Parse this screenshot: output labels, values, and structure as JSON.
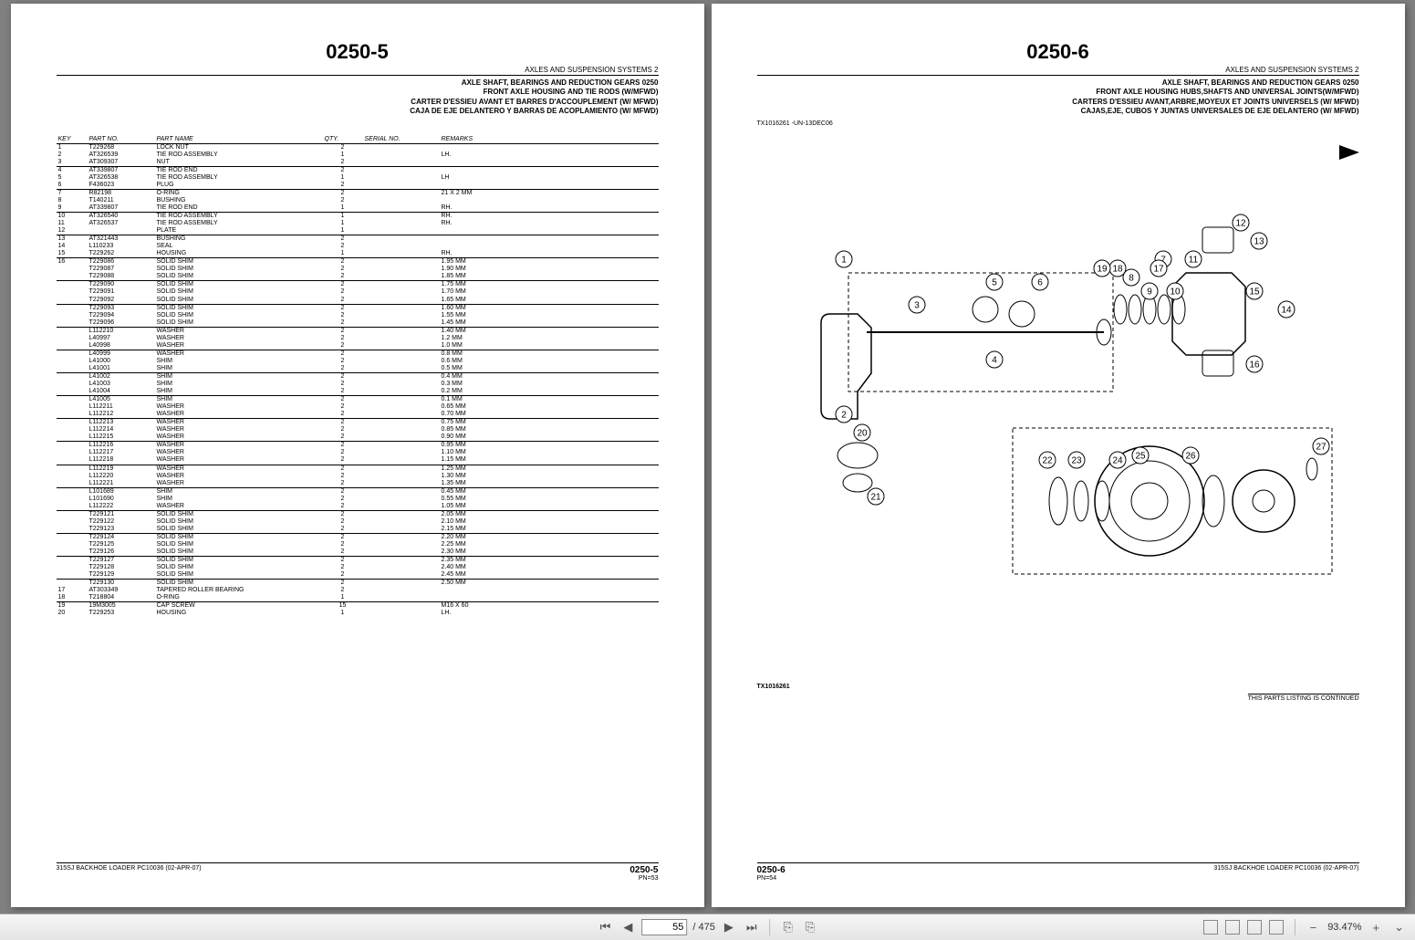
{
  "toolbar": {
    "page_current": "55",
    "page_total": "/ 475",
    "zoom": "93.47%"
  },
  "left_page": {
    "page_num": "0250-5",
    "section": "AXLES AND SUSPENSION SYSTEMS   2",
    "titles": [
      "AXLE SHAFT, BEARINGS AND REDUCTION GEARS 0250",
      "FRONT AXLE HOUSING AND TIE RODS (W/MFWD)",
      "CARTER D'ESSIEU AVANT ET BARRES D'ACCOUPLEMENT (W/ MFWD)",
      "CAJA DE EJE DELANTERO Y BARRAS DE ACOPLAMIENTO (W/ MFWD)"
    ],
    "columns": [
      "KEY",
      "PART NO.",
      "PART NAME",
      "QTY.",
      "SERIAL NO.",
      "REMARKS"
    ],
    "rows": [
      {
        "k": "1",
        "pn": "T229268",
        "nm": "LOCK NUT",
        "q": "2",
        "sn": "",
        "rm": ""
      },
      {
        "k": "2",
        "pn": "AT326539",
        "nm": "TIE ROD ASSEMBLY",
        "q": "1",
        "sn": "",
        "rm": "LH."
      },
      {
        "k": "3",
        "pn": "AT309307",
        "nm": "NUT",
        "q": "2",
        "sn": "",
        "rm": "",
        "ul": true
      },
      {
        "k": "4",
        "pn": "AT339807",
        "nm": "TIE ROD END",
        "q": "2",
        "sn": "",
        "rm": ""
      },
      {
        "k": "5",
        "pn": "AT326538",
        "nm": "TIE ROD ASSEMBLY",
        "q": "1",
        "sn": "",
        "rm": "LH"
      },
      {
        "k": "6",
        "pn": "F436023",
        "nm": "PLUG",
        "q": "2",
        "sn": "",
        "rm": "",
        "ul": true
      },
      {
        "k": "7",
        "pn": "R82198",
        "nm": "O-RING",
        "q": "2",
        "sn": "",
        "rm": "21 X 2 MM"
      },
      {
        "k": "8",
        "pn": "T140211",
        "nm": "BUSHING",
        "q": "2",
        "sn": "",
        "rm": ""
      },
      {
        "k": "9",
        "pn": "AT339807",
        "nm": "TIE ROD END",
        "q": "1",
        "sn": "",
        "rm": "RH.",
        "ul": true
      },
      {
        "k": "10",
        "pn": "AT326540",
        "nm": "TIE ROD ASSEMBLY",
        "q": "1",
        "sn": "",
        "rm": "RH."
      },
      {
        "k": "11",
        "pn": "AT326537",
        "nm": "TIE ROD ASSEMBLY",
        "q": "1",
        "sn": "",
        "rm": "RH."
      },
      {
        "k": "12",
        "pn": "",
        "nm": "PLATE",
        "q": "1",
        "sn": "",
        "rm": "",
        "ul": true
      },
      {
        "k": "13",
        "pn": "AT321443",
        "nm": "BUSHING",
        "q": "2",
        "sn": "",
        "rm": ""
      },
      {
        "k": "14",
        "pn": "L110233",
        "nm": "SEAL",
        "q": "2",
        "sn": "",
        "rm": ""
      },
      {
        "k": "15",
        "pn": "T229262",
        "nm": "HOUSING",
        "q": "1",
        "sn": "",
        "rm": "RH.",
        "ul": true
      },
      {
        "k": "16",
        "pn": "T229086",
        "nm": "SOLID SHIM",
        "q": "2",
        "sn": "",
        "rm": "1.95 MM"
      },
      {
        "k": "",
        "pn": "T229087",
        "nm": "SOLID SHIM",
        "q": "2",
        "sn": "",
        "rm": "1.90 MM"
      },
      {
        "k": "",
        "pn": "T229088",
        "nm": "SOLID SHIM",
        "q": "2",
        "sn": "",
        "rm": "1.85 MM",
        "ul": true
      },
      {
        "k": "",
        "pn": "T229090",
        "nm": "SOLID SHIM",
        "q": "2",
        "sn": "",
        "rm": "1.75 MM"
      },
      {
        "k": "",
        "pn": "T229091",
        "nm": "SOLID SHIM",
        "q": "2",
        "sn": "",
        "rm": "1.70 MM"
      },
      {
        "k": "",
        "pn": "T229092",
        "nm": "SOLID SHIM",
        "q": "2",
        "sn": "",
        "rm": "1.65 MM",
        "ul": true
      },
      {
        "k": "",
        "pn": "T229093",
        "nm": "SOLID SHIM",
        "q": "2",
        "sn": "",
        "rm": "1.60 MM"
      },
      {
        "k": "",
        "pn": "T229094",
        "nm": "SOLID SHIM",
        "q": "2",
        "sn": "",
        "rm": "1.55 MM"
      },
      {
        "k": "",
        "pn": "T229096",
        "nm": "SOLID SHIM",
        "q": "2",
        "sn": "",
        "rm": "1.45 MM",
        "ul": true
      },
      {
        "k": "",
        "pn": "L112210",
        "nm": "WASHER",
        "q": "2",
        "sn": "",
        "rm": "1.40 MM"
      },
      {
        "k": "",
        "pn": "L40997",
        "nm": "WASHER",
        "q": "2",
        "sn": "",
        "rm": "1.2 MM"
      },
      {
        "k": "",
        "pn": "L40998",
        "nm": "WASHER",
        "q": "2",
        "sn": "",
        "rm": "1.0 MM",
        "ul": true
      },
      {
        "k": "",
        "pn": "L40999",
        "nm": "WASHER",
        "q": "2",
        "sn": "",
        "rm": "0.8 MM"
      },
      {
        "k": "",
        "pn": "L41000",
        "nm": "SHIM",
        "q": "2",
        "sn": "",
        "rm": "0.6 MM"
      },
      {
        "k": "",
        "pn": "L41001",
        "nm": "SHIM",
        "q": "2",
        "sn": "",
        "rm": "0.5 MM",
        "ul": true
      },
      {
        "k": "",
        "pn": "L41002",
        "nm": "SHIM",
        "q": "2",
        "sn": "",
        "rm": "0.4 MM"
      },
      {
        "k": "",
        "pn": "L41003",
        "nm": "SHIM",
        "q": "2",
        "sn": "",
        "rm": "0.3 MM"
      },
      {
        "k": "",
        "pn": "L41004",
        "nm": "SHIM",
        "q": "2",
        "sn": "",
        "rm": "0.2 MM",
        "ul": true
      },
      {
        "k": "",
        "pn": "L41005",
        "nm": "SHIM",
        "q": "2",
        "sn": "",
        "rm": "0.1 MM"
      },
      {
        "k": "",
        "pn": "L112211",
        "nm": "WASHER",
        "q": "2",
        "sn": "",
        "rm": "0.65 MM"
      },
      {
        "k": "",
        "pn": "L112212",
        "nm": "WASHER",
        "q": "2",
        "sn": "",
        "rm": "0.70 MM",
        "ul": true
      },
      {
        "k": "",
        "pn": "L112213",
        "nm": "WASHER",
        "q": "2",
        "sn": "",
        "rm": "0.75 MM"
      },
      {
        "k": "",
        "pn": "L112214",
        "nm": "WASHER",
        "q": "2",
        "sn": "",
        "rm": "0.85 MM"
      },
      {
        "k": "",
        "pn": "L112215",
        "nm": "WASHER",
        "q": "2",
        "sn": "",
        "rm": "0.90 MM",
        "ul": true
      },
      {
        "k": "",
        "pn": "L112216",
        "nm": "WASHER",
        "q": "2",
        "sn": "",
        "rm": "0.95 MM"
      },
      {
        "k": "",
        "pn": "L112217",
        "nm": "WASHER",
        "q": "2",
        "sn": "",
        "rm": "1.10 MM"
      },
      {
        "k": "",
        "pn": "L112218",
        "nm": "WASHER",
        "q": "2",
        "sn": "",
        "rm": "1.15 MM",
        "ul": true
      },
      {
        "k": "",
        "pn": "L112219",
        "nm": "WASHER",
        "q": "2",
        "sn": "",
        "rm": "1.25 MM"
      },
      {
        "k": "",
        "pn": "L112220",
        "nm": "WASHER",
        "q": "2",
        "sn": "",
        "rm": "1.30 MM"
      },
      {
        "k": "",
        "pn": "L112221",
        "nm": "WASHER",
        "q": "2",
        "sn": "",
        "rm": "1.35 MM",
        "ul": true
      },
      {
        "k": "",
        "pn": "L101689",
        "nm": "SHIM",
        "q": "2",
        "sn": "",
        "rm": "0.45 MM"
      },
      {
        "k": "",
        "pn": "L101690",
        "nm": "SHIM",
        "q": "2",
        "sn": "",
        "rm": "0.55 MM"
      },
      {
        "k": "",
        "pn": "L112222",
        "nm": "WASHER",
        "q": "2",
        "sn": "",
        "rm": "1.05 MM",
        "ul": true
      },
      {
        "k": "",
        "pn": "T229121",
        "nm": "SOLID SHIM",
        "q": "2",
        "sn": "",
        "rm": "2.05 MM"
      },
      {
        "k": "",
        "pn": "T229122",
        "nm": "SOLID SHIM",
        "q": "2",
        "sn": "",
        "rm": "2.10 MM"
      },
      {
        "k": "",
        "pn": "T229123",
        "nm": "SOLID SHIM",
        "q": "2",
        "sn": "",
        "rm": "2.15 MM",
        "ul": true
      },
      {
        "k": "",
        "pn": "T229124",
        "nm": "SOLID SHIM",
        "q": "2",
        "sn": "",
        "rm": "2.20 MM"
      },
      {
        "k": "",
        "pn": "T229125",
        "nm": "SOLID SHIM",
        "q": "2",
        "sn": "",
        "rm": "2.25 MM"
      },
      {
        "k": "",
        "pn": "T229126",
        "nm": "SOLID SHIM",
        "q": "2",
        "sn": "",
        "rm": "2.30 MM",
        "ul": true
      },
      {
        "k": "",
        "pn": "T229127",
        "nm": "SOLID SHIM",
        "q": "2",
        "sn": "",
        "rm": "2.35 MM"
      },
      {
        "k": "",
        "pn": "T229128",
        "nm": "SOLID SHIM",
        "q": "2",
        "sn": "",
        "rm": "2.40 MM"
      },
      {
        "k": "",
        "pn": "T229129",
        "nm": "SOLID SHIM",
        "q": "2",
        "sn": "",
        "rm": "2.45 MM",
        "ul": true
      },
      {
        "k": "",
        "pn": "T229130",
        "nm": "SOLID SHIM",
        "q": "2",
        "sn": "",
        "rm": "2.50 MM"
      },
      {
        "k": "17",
        "pn": "AT303349",
        "nm": "TAPERED ROLLER BEARING",
        "q": "2",
        "sn": "",
        "rm": ""
      },
      {
        "k": "18",
        "pn": "T218804",
        "nm": "O-RING",
        "q": "1",
        "sn": "",
        "rm": "",
        "ul": true
      },
      {
        "k": "19",
        "pn": "19M3005",
        "nm": "CAP SCREW",
        "q": "15",
        "sn": "",
        "rm": "M16 X 60"
      },
      {
        "k": "20",
        "pn": "T229253",
        "nm": "HOUSING",
        "q": "1",
        "sn": "",
        "rm": "LH."
      }
    ],
    "footer_left": "315SJ BACKHOE LOADER   PC10036   (02-APR-07)",
    "footer_right_big": "0250-5",
    "footer_right_small": "PN=53"
  },
  "right_page": {
    "page_num": "0250-6",
    "section": "AXLES AND SUSPENSION SYSTEMS   2",
    "titles": [
      "AXLE SHAFT, BEARINGS AND REDUCTION GEARS 0250",
      "FRONT AXLE HOUSING HUBS,SHAFTS AND UNIVERSAL JOINTS(W/MFWD)",
      "CARTERS D'ESSIEU AVANT,ARBRE,MOYEUX ET JOINTS UNIVERSELS (W/ MFWD)",
      "CAJAS,EJE, CUBOS Y JUNTAS UNIVERSALES DE EJE DELANTERO (W/ MFWD)"
    ],
    "ref_top": "TX1016261        -UN-13DEC06",
    "callouts": [
      "1",
      "2",
      "3",
      "4",
      "5",
      "6",
      "7",
      "8",
      "9",
      "10",
      "11",
      "12",
      "13",
      "14",
      "15",
      "16",
      "17",
      "18",
      "19",
      "20",
      "21",
      "22",
      "23",
      "24",
      "25",
      "26",
      "27"
    ],
    "ref_bottom": "TX1016261",
    "continued": "THIS PARTS LISTING IS CONTINUED",
    "footer_right": "315SJ BACKHOE LOADER   PC10036   (02-APR-07)",
    "footer_left_big": "0250-6",
    "footer_left_small": "PN=54"
  }
}
